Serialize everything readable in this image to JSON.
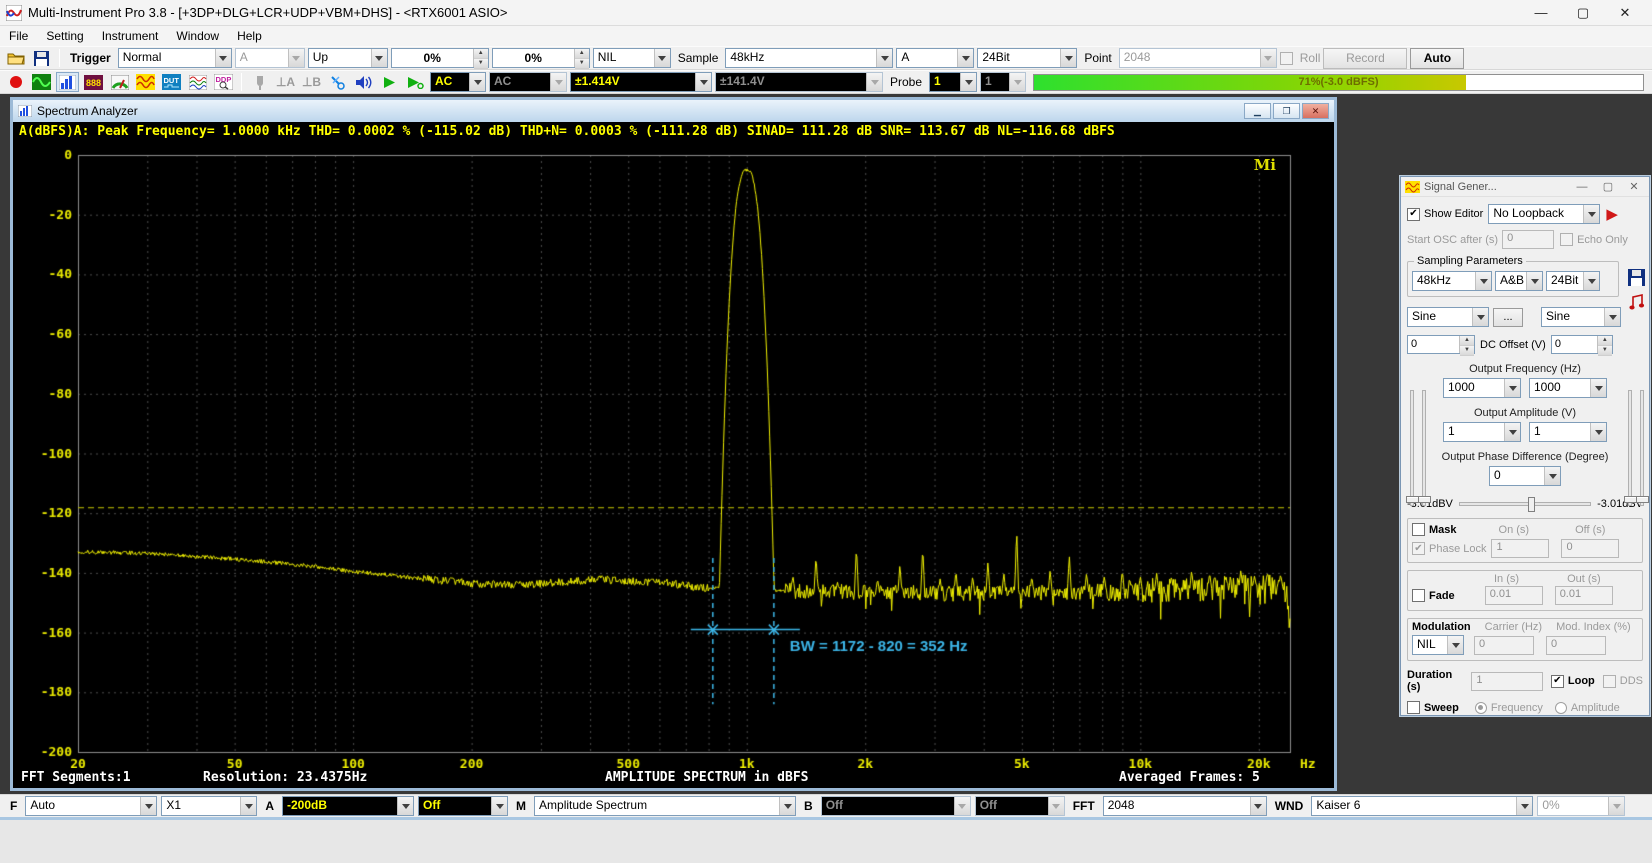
{
  "window": {
    "title": "Multi-Instrument Pro 3.8  -  [+3DP+DLG+LCR+UDP+VBM+DHS]  -  <RTX6001 ASIO>"
  },
  "menu": {
    "items": [
      "File",
      "Setting",
      "Instrument",
      "Window",
      "Help"
    ]
  },
  "toolbar1": {
    "trigger_label": "Trigger",
    "trigger_mode": "Normal",
    "trigger_source": "A",
    "trigger_edge": "Up",
    "trigger_level": "0%",
    "trigger_delay": "0%",
    "trigger_hpf": "NIL",
    "sample_label": "Sample",
    "sample_rate": "48kHz",
    "sample_channel": "A",
    "bit_depth": "24Bit",
    "point_label": "Point",
    "points": "2048",
    "roll_label": "Roll",
    "record_label": "Record",
    "auto_label": "Auto"
  },
  "toolbar2": {
    "icon_text": {
      "multimeter": "888",
      "dut": "DUT",
      "ddp": "DDP",
      "trig_a": "⊥A",
      "trig_b": "⊥B"
    },
    "coupling_a": "AC",
    "coupling_b": "AC",
    "range_a": "±1.414V",
    "range_b": "±141.4V",
    "probe_label": "Probe",
    "probe_a": "1",
    "probe_b": "1",
    "level_meter": {
      "percent": 71,
      "text": "71%(-3.0 dBFS)"
    }
  },
  "spectrum": {
    "title": "Spectrum Analyzer",
    "measurements": "A(dBFS)A: Peak Frequency=  1.0000 kHz  THD=  0.0002 % (-115.02 dB)  THD+N=  0.0003 % (-111.28 dB)  SINAD= 111.28 dB  SNR= 113.67 dB  NL=-116.68 dBFS",
    "logo": "Mi",
    "status_left": "FFT Segments:1",
    "status_res": "Resolution: 23.4375Hz",
    "status_center": "AMPLITUDE SPECTRUM in dBFS",
    "status_right": "Averaged Frames: 5"
  },
  "chart_data": {
    "type": "line",
    "title": "AMPLITUDE SPECTRUM in dBFS",
    "xlabel": "Hz",
    "ylabel": "dBFS",
    "xscale": "log",
    "xlim": [
      20,
      24000
    ],
    "ylim": [
      -200,
      0
    ],
    "grid": true,
    "xticks": [
      {
        "f": 20,
        "label": "20"
      },
      {
        "f": 50,
        "label": "50"
      },
      {
        "f": 100,
        "label": "100"
      },
      {
        "f": 200,
        "label": "200"
      },
      {
        "f": 500,
        "label": "500"
      },
      {
        "f": 1000,
        "label": "1k"
      },
      {
        "f": 2000,
        "label": "2k"
      },
      {
        "f": 5000,
        "label": "5k"
      },
      {
        "f": 10000,
        "label": "10k"
      },
      {
        "f": 20000,
        "label": "20k"
      }
    ],
    "yticks": [
      0,
      -20,
      -40,
      -60,
      -80,
      -100,
      -120,
      -140,
      -160,
      -180,
      -200
    ],
    "trace_color": "#f2f200",
    "grid_color": "#4d4d4d",
    "noise_floor_keypoints": [
      [
        20,
        -133
      ],
      [
        28,
        -133.3
      ],
      [
        40,
        -134.5
      ],
      [
        55,
        -135.8
      ],
      [
        75,
        -137.5
      ],
      [
        100,
        -139.5
      ],
      [
        140,
        -141.5
      ],
      [
        200,
        -143.5
      ],
      [
        260,
        -144.2
      ],
      [
        330,
        -143.2
      ],
      [
        420,
        -142.2
      ],
      [
        520,
        -142.8
      ],
      [
        620,
        -143.2
      ],
      [
        700,
        -144.3
      ],
      [
        780,
        -145
      ],
      [
        1250,
        -146
      ],
      [
        2000,
        -146.5
      ],
      [
        3500,
        -147
      ],
      [
        6000,
        -146.5
      ],
      [
        9000,
        -146
      ],
      [
        14000,
        -145.5
      ],
      [
        20000,
        -144.5
      ],
      [
        23000,
        -145
      ],
      [
        23600,
        -148
      ],
      [
        24000,
        -157
      ]
    ],
    "peak": {
      "freq": 1000,
      "top_db": -5,
      "floor_crossings": [
        820,
        1172
      ]
    },
    "spurs": [
      [
        1310,
        -141
      ],
      [
        1500,
        -134
      ],
      [
        1700,
        -143
      ],
      [
        1900,
        -131
      ],
      [
        2150,
        -142
      ],
      [
        2450,
        -137
      ],
      [
        2800,
        -131
      ],
      [
        3100,
        -142
      ],
      [
        3400,
        -139
      ],
      [
        3750,
        -141
      ],
      [
        4100,
        -136
      ],
      [
        4500,
        -140
      ],
      [
        4850,
        -125
      ],
      [
        5300,
        -141
      ],
      [
        5900,
        -139
      ],
      [
        6600,
        -134
      ],
      [
        7300,
        -140
      ],
      [
        8100,
        -141
      ],
      [
        9000,
        -139
      ],
      [
        10000,
        -141
      ],
      [
        11000,
        -140
      ],
      [
        12000,
        -141
      ],
      [
        13500,
        -139
      ],
      [
        15000,
        -140
      ],
      [
        16500,
        -141
      ],
      [
        18000,
        -139
      ],
      [
        19500,
        -141
      ],
      [
        21000,
        -140
      ],
      [
        22500,
        -142
      ]
    ],
    "noise_level_marker_db": -118,
    "marker_color": "#c8c800",
    "bw_annotation": {
      "text": "BW = 1172 - 820 = 352 Hz",
      "f1": 820,
      "f2": 1172,
      "line_db": -159,
      "color": "#3cb6e8"
    }
  },
  "siggen": {
    "title": "Signal Gener...",
    "show_editor": "Show Editor",
    "loopback": "No Loopback",
    "start_osc_label": "Start OSC after (s)",
    "start_osc": "0",
    "echo_only": "Echo Only",
    "sampling_group": "Sampling Parameters",
    "rate": "48kHz",
    "channels": "A&B",
    "bits": "24Bit",
    "wave_a": "Sine",
    "more_label": "...",
    "wave_b": "Sine",
    "dc_a": "0",
    "dc_label": "DC Offset (V)",
    "dc_b": "0",
    "freq_label": "Output Frequency (Hz)",
    "freq_a": "1000",
    "freq_b": "1000",
    "amp_label": "Output Amplitude (V)",
    "amp_a": "1",
    "amp_b": "1",
    "phase_label": "Output Phase Difference (Degree)",
    "phase": "0",
    "level_left": "-3.01dBV",
    "level_right": "-3.01dBV",
    "mask_label": "Mask",
    "on_label": "On (s)",
    "off_label": "Off (s)",
    "phase_lock_label": "Phase Lock",
    "mask_on": "1",
    "mask_off": "0",
    "fade_label": "Fade",
    "in_label": "In (s)",
    "out_label": "Out (s)",
    "fade_in": "0.01",
    "fade_out": "0.01",
    "modulation_label": "Modulation",
    "carrier_label": "Carrier (Hz)",
    "mod_index_label": "Mod. Index (%)",
    "modulation": "NIL",
    "carrier": "0",
    "mod_index": "0",
    "duration_label": "Duration (s)",
    "duration": "1",
    "loop_label": "Loop",
    "dds_label": "DDS",
    "sweep_label": "Sweep",
    "sweep_freq": "Frequency",
    "sweep_amp": "Amplitude"
  },
  "bottombar": {
    "f_label": "F",
    "freq_range": "Auto",
    "zoom": "X1",
    "a_label": "A",
    "a_range": "-200dB",
    "a_option": "Off",
    "m_label": "M",
    "mode": "Amplitude Spectrum",
    "b_label": "B",
    "b_range": "Off",
    "b_option": "Off",
    "fft_label": "FFT",
    "fft_size": "2048",
    "wnd_label": "WND",
    "window_fn": "Kaiser 6",
    "overlap": "0%"
  }
}
